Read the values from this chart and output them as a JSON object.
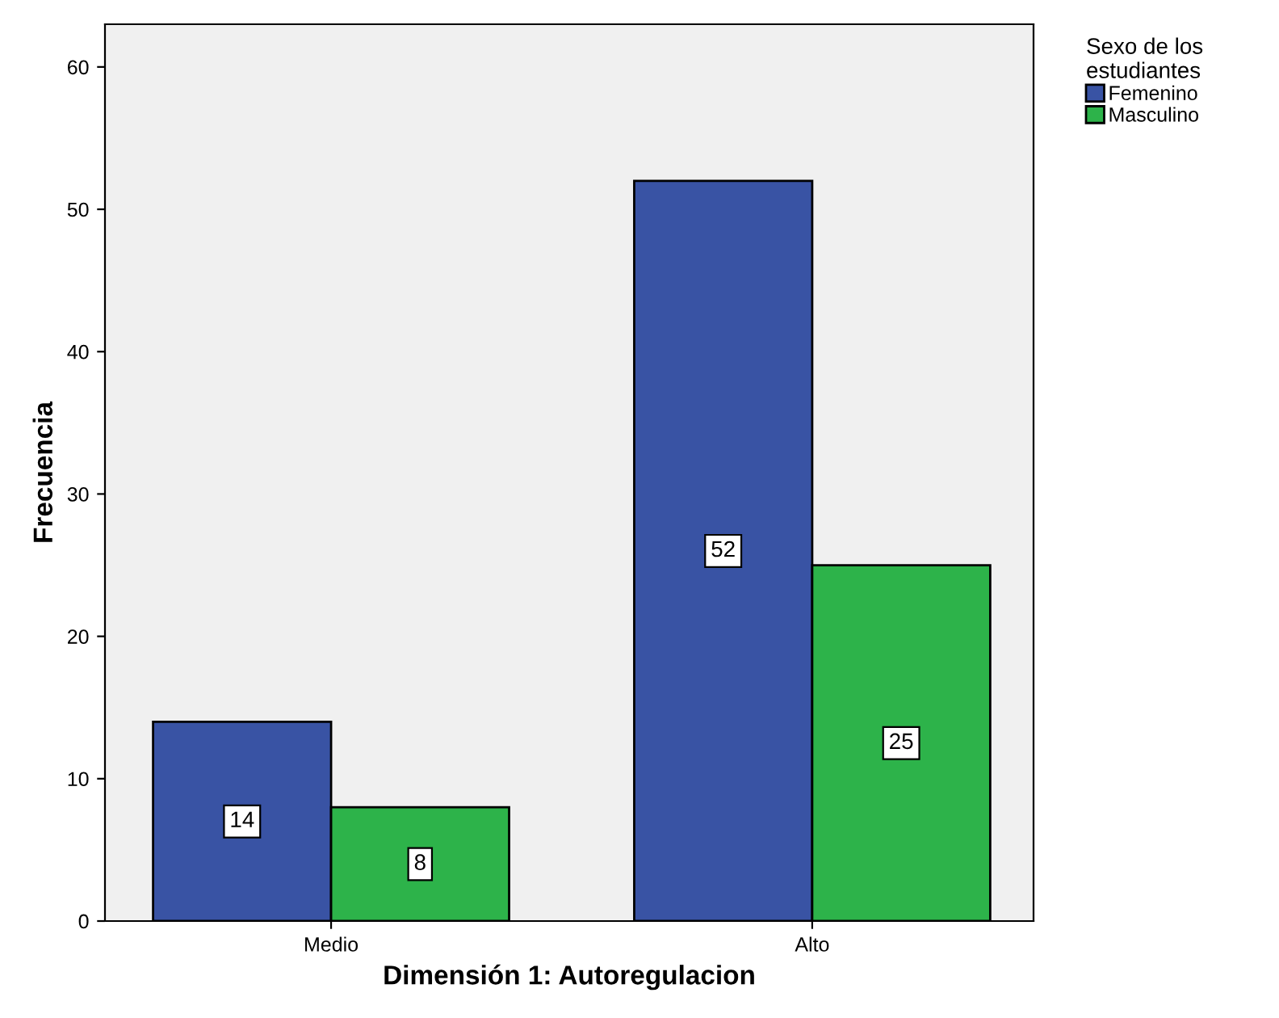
{
  "chart_data": {
    "type": "bar",
    "xlabel": "Dimensión 1: Autoregulacion",
    "ylabel": "Frecuencia",
    "legend_title": "Sexo de los\nestudiantes",
    "categories": [
      "Medio",
      "Alto"
    ],
    "series": [
      {
        "name": "Femenino",
        "color": "#3953a4",
        "values": [
          14,
          52
        ]
      },
      {
        "name": "Masculino",
        "color": "#2db34a",
        "values": [
          8,
          25
        ]
      }
    ],
    "ylim": [
      0,
      63
    ],
    "yticks": [
      0,
      10,
      20,
      30,
      40,
      50,
      60
    ],
    "grid": false,
    "legend": "top right",
    "data_labels": true
  }
}
